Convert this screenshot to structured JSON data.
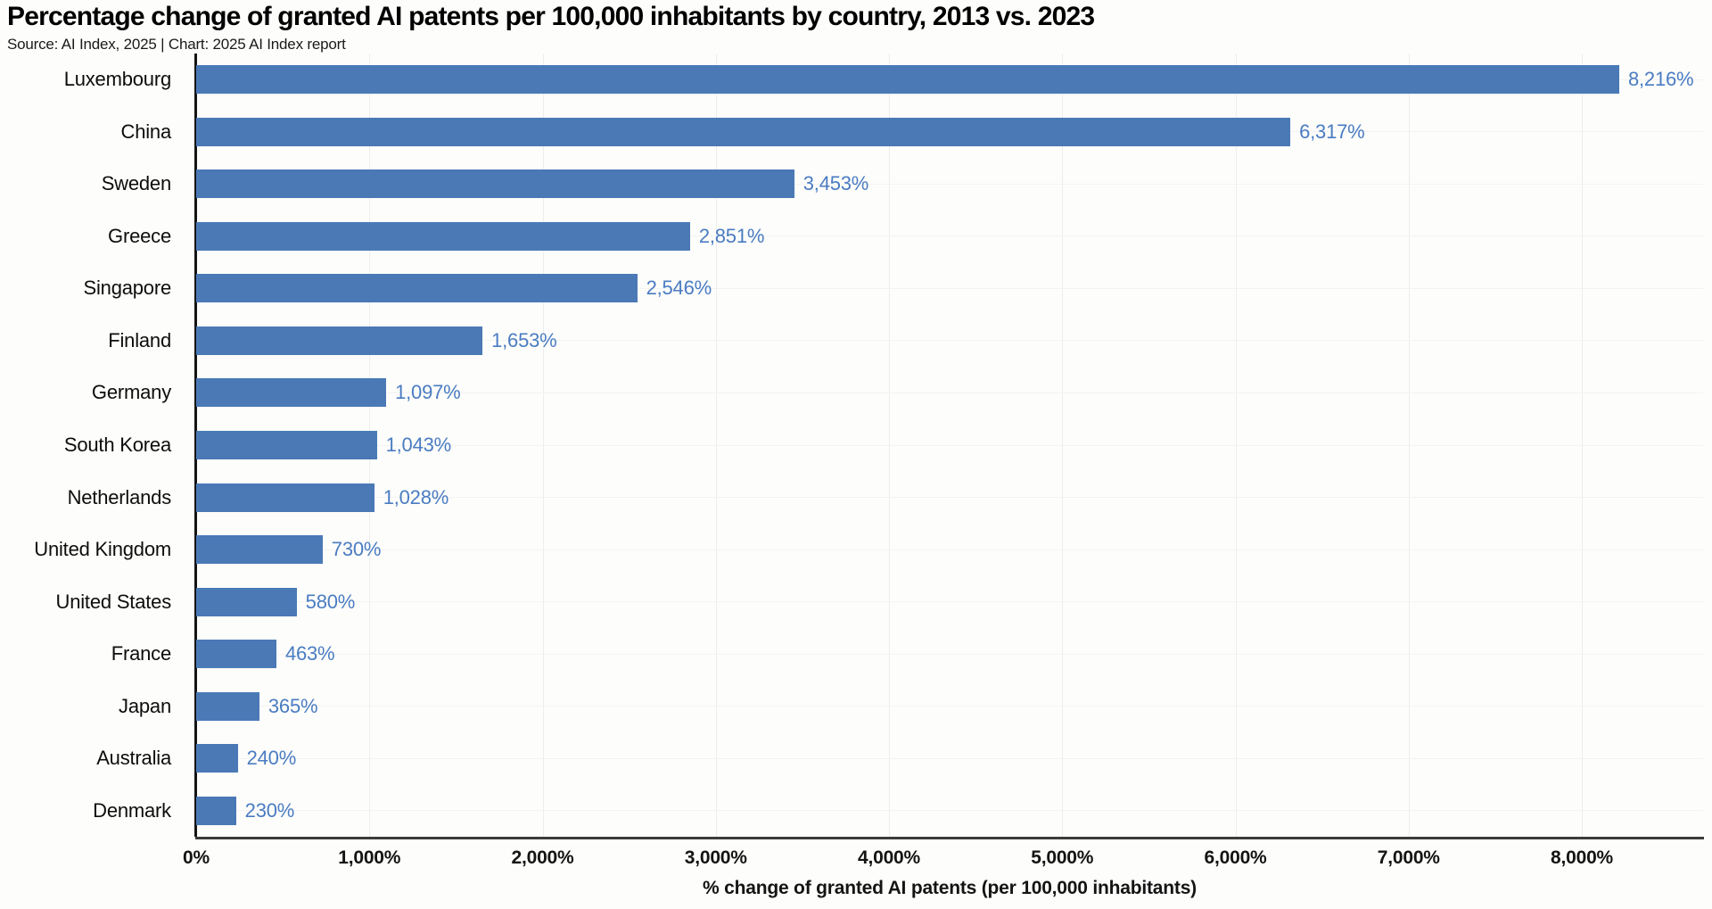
{
  "header": {
    "title": "Percentage change of granted AI patents per 100,000 inhabitants by country, 2013 vs. 2023",
    "source": "Source: AI Index, 2025 | Chart: 2025 AI Index report"
  },
  "colors": {
    "bar": "#4a79b6",
    "value_label": "#4a7cc2",
    "axis_line": "#141414",
    "baseline": "#3b3b3b",
    "grid_vertical": "#ededed",
    "grid_horizontal": "#f3f3f3",
    "text": "#111111",
    "background": "#fdfdfb"
  },
  "chart_data": {
    "type": "bar",
    "orientation": "horizontal",
    "title": "Percentage change of granted AI patents per 100,000 inhabitants by country, 2013 vs. 2023",
    "subtitle": "Source: AI Index, 2025 | Chart: 2025 AI Index report",
    "xlabel": "% change of granted AI patents (per 100,000 inhabitants)",
    "ylabel": "",
    "categories": [
      "Luxembourg",
      "China",
      "Sweden",
      "Greece",
      "Singapore",
      "Finland",
      "Germany",
      "South Korea",
      "Netherlands",
      "United Kingdom",
      "United States",
      "France",
      "Japan",
      "Australia",
      "Denmark"
    ],
    "values": [
      8216,
      6317,
      3453,
      2851,
      2546,
      1653,
      1097,
      1043,
      1028,
      730,
      580,
      463,
      365,
      240,
      230
    ],
    "value_labels": [
      "8,216%",
      "6,317%",
      "3,453%",
      "2,851%",
      "2,546%",
      "1,653%",
      "1,097%",
      "1,043%",
      "1,028%",
      "730%",
      "580%",
      "463%",
      "365%",
      "240%",
      "230%"
    ],
    "xlim": [
      0,
      8700
    ],
    "xticks": {
      "values": [
        0,
        1000,
        2000,
        3000,
        4000,
        5000,
        6000,
        7000,
        8000
      ],
      "labels": [
        "0%",
        "1,000%",
        "2,000%",
        "3,000%",
        "4,000%",
        "5,000%",
        "6,000%",
        "7,000%",
        "8,000%"
      ]
    },
    "grid": true,
    "legend": false
  }
}
